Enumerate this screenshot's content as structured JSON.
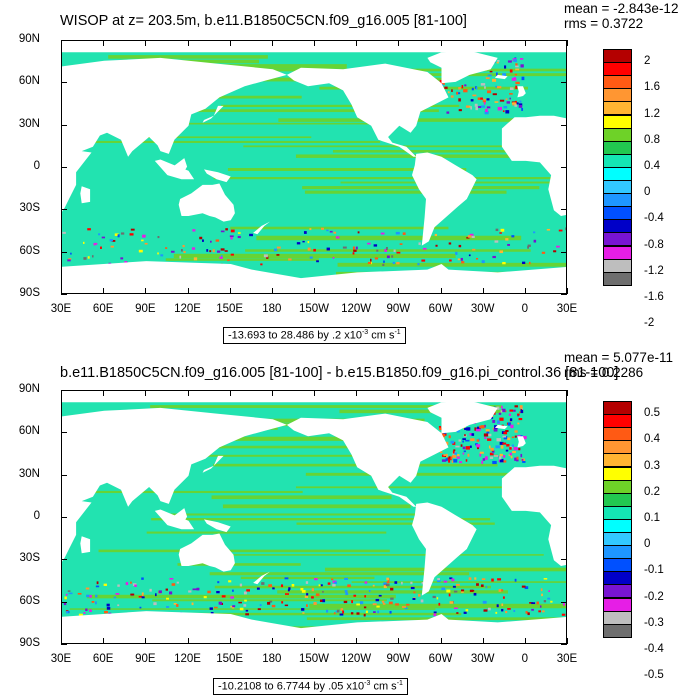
{
  "panels": [
    {
      "id": "top",
      "title": "WISOP at z= 203.5m, b.e11.B1850C5CN.f09_g16.005 [81-100]",
      "mean": "mean = -2.843e-12",
      "rms": "rms = 0.3722",
      "lat_ticks": [
        "90N",
        "60N",
        "30N",
        "0",
        "30S",
        "60S",
        "90S"
      ],
      "lon_ticks": [
        "30E",
        "60E",
        "90E",
        "120E",
        "150E",
        "180",
        "150W",
        "120W",
        "90W",
        "60W",
        "30W",
        "0",
        "30E"
      ],
      "range_text": "-13.693 to 28.486 by .2 x10",
      "range_exp": "-3",
      "range_units": " cm s",
      "range_units_exp": "-1",
      "colorbar_labels": [
        "2",
        "1.6",
        "1.2",
        "0.8",
        "0.4",
        "0",
        "-0.4",
        "-0.8",
        "-1.2",
        "-1.6",
        "-2"
      ]
    },
    {
      "id": "bottom",
      "title": "b.e11.B1850C5CN.f09_g16.005 [81-100] - b.e15.B1850.f09_g16.pi_control.36 [81-100]",
      "mean": "mean = 5.077e-11",
      "rms": "rms = 0.2286",
      "lat_ticks": [
        "90N",
        "60N",
        "30N",
        "0",
        "30S",
        "60S",
        "90S"
      ],
      "lon_ticks": [
        "30E",
        "60E",
        "90E",
        "120E",
        "150E",
        "180",
        "150W",
        "120W",
        "90W",
        "60W",
        "30W",
        "0",
        "30E"
      ],
      "range_text": "-10.2108 to 6.7744 by .05 x10",
      "range_exp": "-3",
      "range_units": " cm s",
      "range_units_exp": "-1",
      "colorbar_labels": [
        "0.5",
        "0.4",
        "0.3",
        "0.2",
        "0.1",
        "0",
        "-0.1",
        "-0.2",
        "-0.3",
        "-0.4",
        "-0.5"
      ]
    }
  ],
  "colorbar_colors": [
    "#b40000",
    "#ff0000",
    "#ff5a14",
    "#ff9632",
    "#ffb432",
    "#ffff00",
    "#6ed228",
    "#22c850",
    "#14e6b4",
    "#00ffff",
    "#32c8ff",
    "#1e96ff",
    "#0050ff",
    "#0000c8",
    "#7814d2",
    "#e61ee6",
    "#bebebe",
    "#6e6e6e"
  ],
  "field_colors": {
    "ocean_base": "#22e3b0",
    "positive": "#6ed228",
    "land": "#ffffff"
  }
}
